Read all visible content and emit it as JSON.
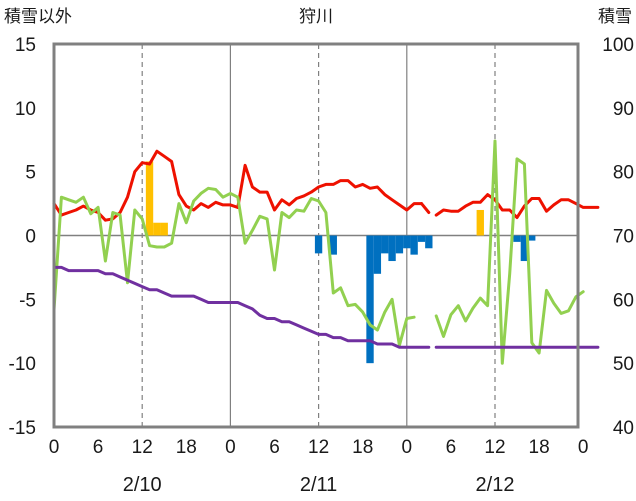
{
  "chart_data": {
    "type": "line",
    "title": "狩川",
    "left_axis": {
      "label": "積雪以外",
      "range": [
        -15,
        15
      ],
      "ticks": [
        15,
        10,
        5,
        0,
        -5,
        -10,
        -15
      ]
    },
    "right_axis": {
      "label": "積雪",
      "range": [
        40,
        100
      ],
      "ticks": [
        100,
        90,
        80,
        70,
        60,
        50,
        40
      ]
    },
    "x_tick_labels": [
      "0",
      "6",
      "12",
      "18",
      "0",
      "6",
      "12",
      "18",
      "0",
      "6",
      "12",
      "18",
      "0"
    ],
    "date_labels": [
      "2/10",
      "2/11",
      "2/12"
    ],
    "grid": "dashed vertical lines at 12h",
    "colors": {
      "temperature": "#ee1100",
      "wind": "#92d050",
      "snow_depth": "#7030a0",
      "positive_bar": "#ffc000",
      "negative_bar": "#0070c0",
      "frame": "#808080"
    },
    "series": [
      {
        "color": "#ee1100",
        "axis": "left",
        "segments": [
          {
            "x": [
              0,
              1,
              2,
              3,
              4,
              5,
              6,
              7,
              8,
              9,
              10,
              11,
              12,
              13,
              14,
              15,
              16,
              17,
              18,
              19,
              20,
              21,
              22,
              23,
              24,
              25
            ],
            "y": [
              2.5,
              1.6,
              1.8,
              2.0,
              2.3,
              2.0,
              1.8,
              1.2,
              1.3,
              1.8,
              3.0,
              5.0,
              5.7,
              5.6,
              6.6,
              6.2,
              5.8,
              3.2,
              2.3,
              2.0,
              2.5,
              2.2,
              2.6,
              2.4,
              2.4,
              2.2
            ]
          },
          {
            "x": [
              25,
              26,
              27,
              28,
              29,
              30,
              31,
              32,
              33,
              34,
              35,
              36,
              37,
              38,
              39,
              40,
              41,
              42,
              43,
              44,
              45,
              46,
              47,
              48,
              49,
              50
            ],
            "y": [
              2.2,
              5.5,
              3.8,
              3.4,
              3.4,
              2.0,
              2.8,
              2.4,
              2.9,
              3.1,
              3.4,
              3.8,
              4.0,
              4.0,
              4.3,
              4.3,
              3.8,
              4.0,
              3.7,
              3.8,
              3.2,
              2.8,
              2.4,
              2.0,
              2.5,
              2.5
            ]
          },
          {
            "x": [
              50,
              51
            ],
            "y": [
              2.5,
              1.8
            ]
          },
          {
            "x": [
              52,
              53,
              54,
              55,
              56,
              57,
              58,
              59,
              60,
              61,
              62,
              63,
              64,
              65,
              66,
              67,
              68,
              69,
              70,
              71,
              72,
              73,
              74
            ],
            "y": [
              1.6,
              2.0,
              1.9,
              1.9,
              2.3,
              2.6,
              2.6,
              3.2,
              2.8,
              2.0,
              2.0,
              1.4,
              2.3,
              2.9,
              2.9,
              1.9,
              2.4,
              2.8,
              2.8,
              2.5,
              2.2,
              2.2,
              2.2
            ]
          }
        ]
      },
      {
        "color": "#92d050",
        "axis": "left",
        "segments": [
          {
            "x": [
              0,
              1,
              2,
              3,
              4,
              5,
              6,
              7,
              8,
              9,
              10,
              11,
              12,
              13,
              14,
              15,
              16,
              17,
              18,
              19,
              20,
              21,
              22,
              23,
              24,
              25,
              26,
              27,
              28,
              29,
              30,
              31,
              32,
              33,
              34,
              35,
              36,
              37,
              38,
              39,
              40,
              41,
              42,
              43,
              44,
              45,
              46,
              47,
              48,
              49,
              50,
              51
            ],
            "y": [
              -5.8,
              3.0,
              2.8,
              2.6,
              3.0,
              1.7,
              2.2,
              -2.0,
              1.8,
              1.6,
              -3.7,
              2.0,
              1.3,
              -0.8,
              -0.9,
              -0.9,
              -0.6,
              2.5,
              1.0,
              2.7,
              3.3,
              3.7,
              3.6,
              3.0,
              3.3,
              3.0,
              -0.6,
              0.4,
              1.5,
              1.3,
              -2.7,
              1.8,
              1.4,
              2.0,
              1.9,
              2.9,
              2.7,
              1.8,
              -4.5,
              -4.1,
              -5.5,
              -5.4,
              -6.0,
              -7.0,
              -7.4,
              -6.0,
              -5.0,
              -8.6,
              -6.5,
              -6.4,
              null,
              null
            ]
          },
          {
            "x": [
              52,
              53,
              54,
              55,
              56,
              57,
              58,
              59,
              60,
              61,
              62,
              63,
              64,
              65,
              66,
              67,
              68,
              69,
              70,
              71,
              72,
              73,
              74
            ],
            "y": [
              -6.3,
              -7.9,
              -6.2,
              -5.5,
              -6.7,
              -5.7,
              -4.9,
              -5.5,
              7.4,
              -10.0,
              -3.0,
              6.0,
              5.6,
              -8.4,
              -9.2,
              -4.3,
              -5.3,
              -6.1,
              -5.9,
              -4.8,
              -4.4,
              null,
              null
            ]
          }
        ]
      },
      {
        "color": "#7030a0",
        "axis": "right",
        "segments": [
          {
            "x": [
              0,
              1,
              2,
              3,
              4,
              5,
              6,
              7,
              8,
              9,
              10,
              11,
              12,
              13,
              14,
              15,
              16,
              17,
              18,
              19,
              20,
              21,
              22,
              23,
              24,
              25,
              26,
              27,
              28,
              29,
              30,
              31,
              32,
              33,
              34,
              35,
              36,
              37,
              38,
              39,
              40,
              41,
              42,
              43,
              44,
              45,
              46,
              47,
              48,
              49,
              50,
              51
            ],
            "y": [
              65,
              65,
              64.5,
              64.5,
              64.5,
              64.5,
              64.5,
              64,
              64,
              63.5,
              63,
              62.5,
              62,
              61.5,
              61.5,
              61,
              60.5,
              60.5,
              60.5,
              60.5,
              60,
              59.5,
              59.5,
              59.5,
              59.5,
              59.5,
              59,
              58.5,
              57.5,
              57,
              57,
              56.5,
              56.5,
              56,
              55.5,
              55,
              54.5,
              54.5,
              54,
              54,
              53.5,
              53.5,
              53.5,
              53.5,
              53,
              53,
              53,
              52.5,
              52.5,
              52.5,
              52.5,
              52.5
            ]
          },
          {
            "x": [
              52,
              53,
              54,
              55,
              56,
              57,
              58,
              59,
              60,
              61,
              62,
              63,
              64,
              65,
              66,
              67,
              68,
              69,
              70,
              71,
              72,
              73,
              74
            ],
            "y": [
              52.5,
              52.5,
              52.5,
              52.5,
              52.5,
              52.5,
              52.5,
              52.5,
              52.5,
              52.5,
              52.5,
              52.5,
              52.5,
              52.5,
              52.5,
              52.5,
              52.5,
              52.5,
              52.5,
              52.5,
              52.5,
              52.5,
              52.5
            ]
          }
        ]
      }
    ],
    "bars": {
      "axis": "left",
      "x": [
        13,
        14,
        15,
        36,
        38,
        43,
        44,
        45,
        46,
        47,
        48,
        49,
        50,
        51,
        58,
        63,
        64,
        65
      ],
      "y": [
        5.8,
        1.0,
        1.0,
        -1.4,
        -1.5,
        -10.0,
        -3.0,
        -1.4,
        -2.0,
        -1.4,
        -1.0,
        -1.5,
        -0.5,
        -1.0,
        2.0,
        -0.5,
        -2.0,
        -0.4
      ]
    }
  }
}
